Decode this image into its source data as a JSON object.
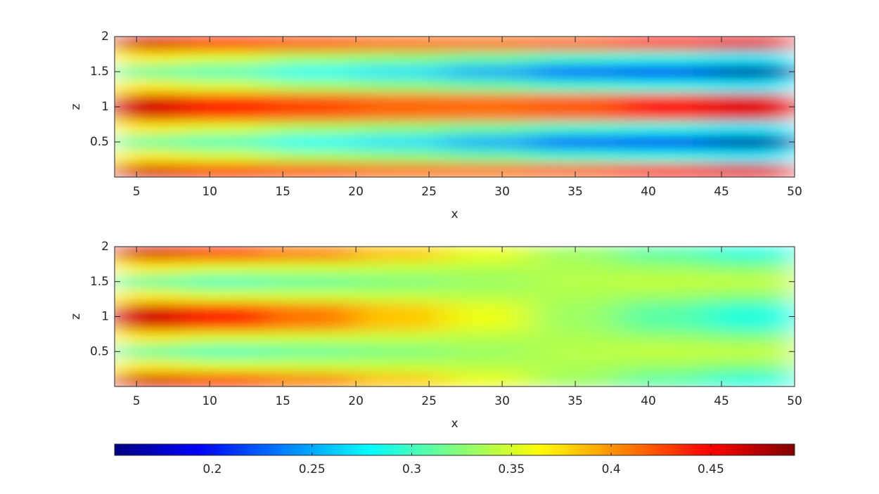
{
  "chart_data": [
    {
      "type": "heatmap",
      "xlabel": "x",
      "ylabel": "z",
      "xlim": [
        3.5,
        50
      ],
      "ylim": [
        0,
        2
      ],
      "xticks": [
        5,
        10,
        15,
        20,
        25,
        30,
        35,
        40,
        45,
        50
      ],
      "yticks": [
        0.5,
        1,
        1.5,
        2
      ],
      "x": [
        5,
        11,
        17,
        23,
        29,
        35,
        41,
        47
      ],
      "z": [
        0.1,
        0.3,
        0.5,
        0.7,
        0.9,
        1.1,
        1.3,
        1.5,
        1.7,
        1.9
      ],
      "values": [
        [
          0.464,
          0.436,
          0.425,
          0.415,
          0.413,
          0.419,
          0.443,
          0.458
        ],
        [
          0.369,
          0.352,
          0.335,
          0.325,
          0.312,
          0.296,
          0.287,
          0.274
        ],
        [
          0.31,
          0.3,
          0.28,
          0.27,
          0.25,
          0.22,
          0.19,
          0.16
        ],
        [
          0.369,
          0.352,
          0.335,
          0.325,
          0.312,
          0.296,
          0.287,
          0.274
        ],
        [
          0.464,
          0.436,
          0.425,
          0.415,
          0.413,
          0.419,
          0.443,
          0.458
        ],
        [
          0.464,
          0.436,
          0.425,
          0.415,
          0.413,
          0.419,
          0.443,
          0.458
        ],
        [
          0.369,
          0.352,
          0.335,
          0.325,
          0.312,
          0.296,
          0.287,
          0.274
        ],
        [
          0.31,
          0.3,
          0.28,
          0.27,
          0.25,
          0.22,
          0.19,
          0.16
        ],
        [
          0.369,
          0.352,
          0.335,
          0.325,
          0.312,
          0.296,
          0.287,
          0.274
        ],
        [
          0.464,
          0.436,
          0.425,
          0.415,
          0.413,
          0.419,
          0.443,
          0.458
        ]
      ]
    },
    {
      "type": "heatmap",
      "xlabel": "x",
      "ylabel": "z",
      "xlim": [
        3.5,
        50
      ],
      "ylim": [
        0,
        2
      ],
      "xticks": [
        5,
        10,
        15,
        20,
        25,
        30,
        35,
        40,
        45,
        50
      ],
      "yticks": [
        0.5,
        1,
        1.5,
        2
      ],
      "x": [
        5,
        11,
        17,
        23,
        29,
        35,
        41,
        47
      ],
      "z": [
        0.1,
        0.3,
        0.5,
        0.7,
        0.9,
        1.1,
        1.3,
        1.5,
        1.7,
        1.9
      ],
      "values": [
        [
          0.464,
          0.436,
          0.409,
          0.383,
          0.357,
          0.331,
          0.309,
          0.291
        ],
        [
          0.369,
          0.352,
          0.348,
          0.344,
          0.34,
          0.337,
          0.331,
          0.324
        ],
        [
          0.31,
          0.3,
          0.31,
          0.32,
          0.33,
          0.34,
          0.345,
          0.345
        ],
        [
          0.369,
          0.352,
          0.348,
          0.344,
          0.34,
          0.337,
          0.331,
          0.324
        ],
        [
          0.464,
          0.436,
          0.409,
          0.383,
          0.357,
          0.331,
          0.309,
          0.291
        ],
        [
          0.464,
          0.436,
          0.409,
          0.383,
          0.357,
          0.331,
          0.309,
          0.291
        ],
        [
          0.369,
          0.352,
          0.348,
          0.344,
          0.34,
          0.337,
          0.331,
          0.324
        ],
        [
          0.31,
          0.3,
          0.31,
          0.32,
          0.33,
          0.34,
          0.345,
          0.345
        ],
        [
          0.369,
          0.352,
          0.348,
          0.344,
          0.34,
          0.337,
          0.331,
          0.324
        ],
        [
          0.464,
          0.436,
          0.409,
          0.383,
          0.357,
          0.331,
          0.309,
          0.291
        ]
      ]
    }
  ],
  "colorbar": {
    "colormap": "jet",
    "clim": [
      0.151,
      0.492
    ],
    "ticks": [
      0.2,
      0.25,
      0.3,
      0.35,
      0.4,
      0.45
    ]
  }
}
